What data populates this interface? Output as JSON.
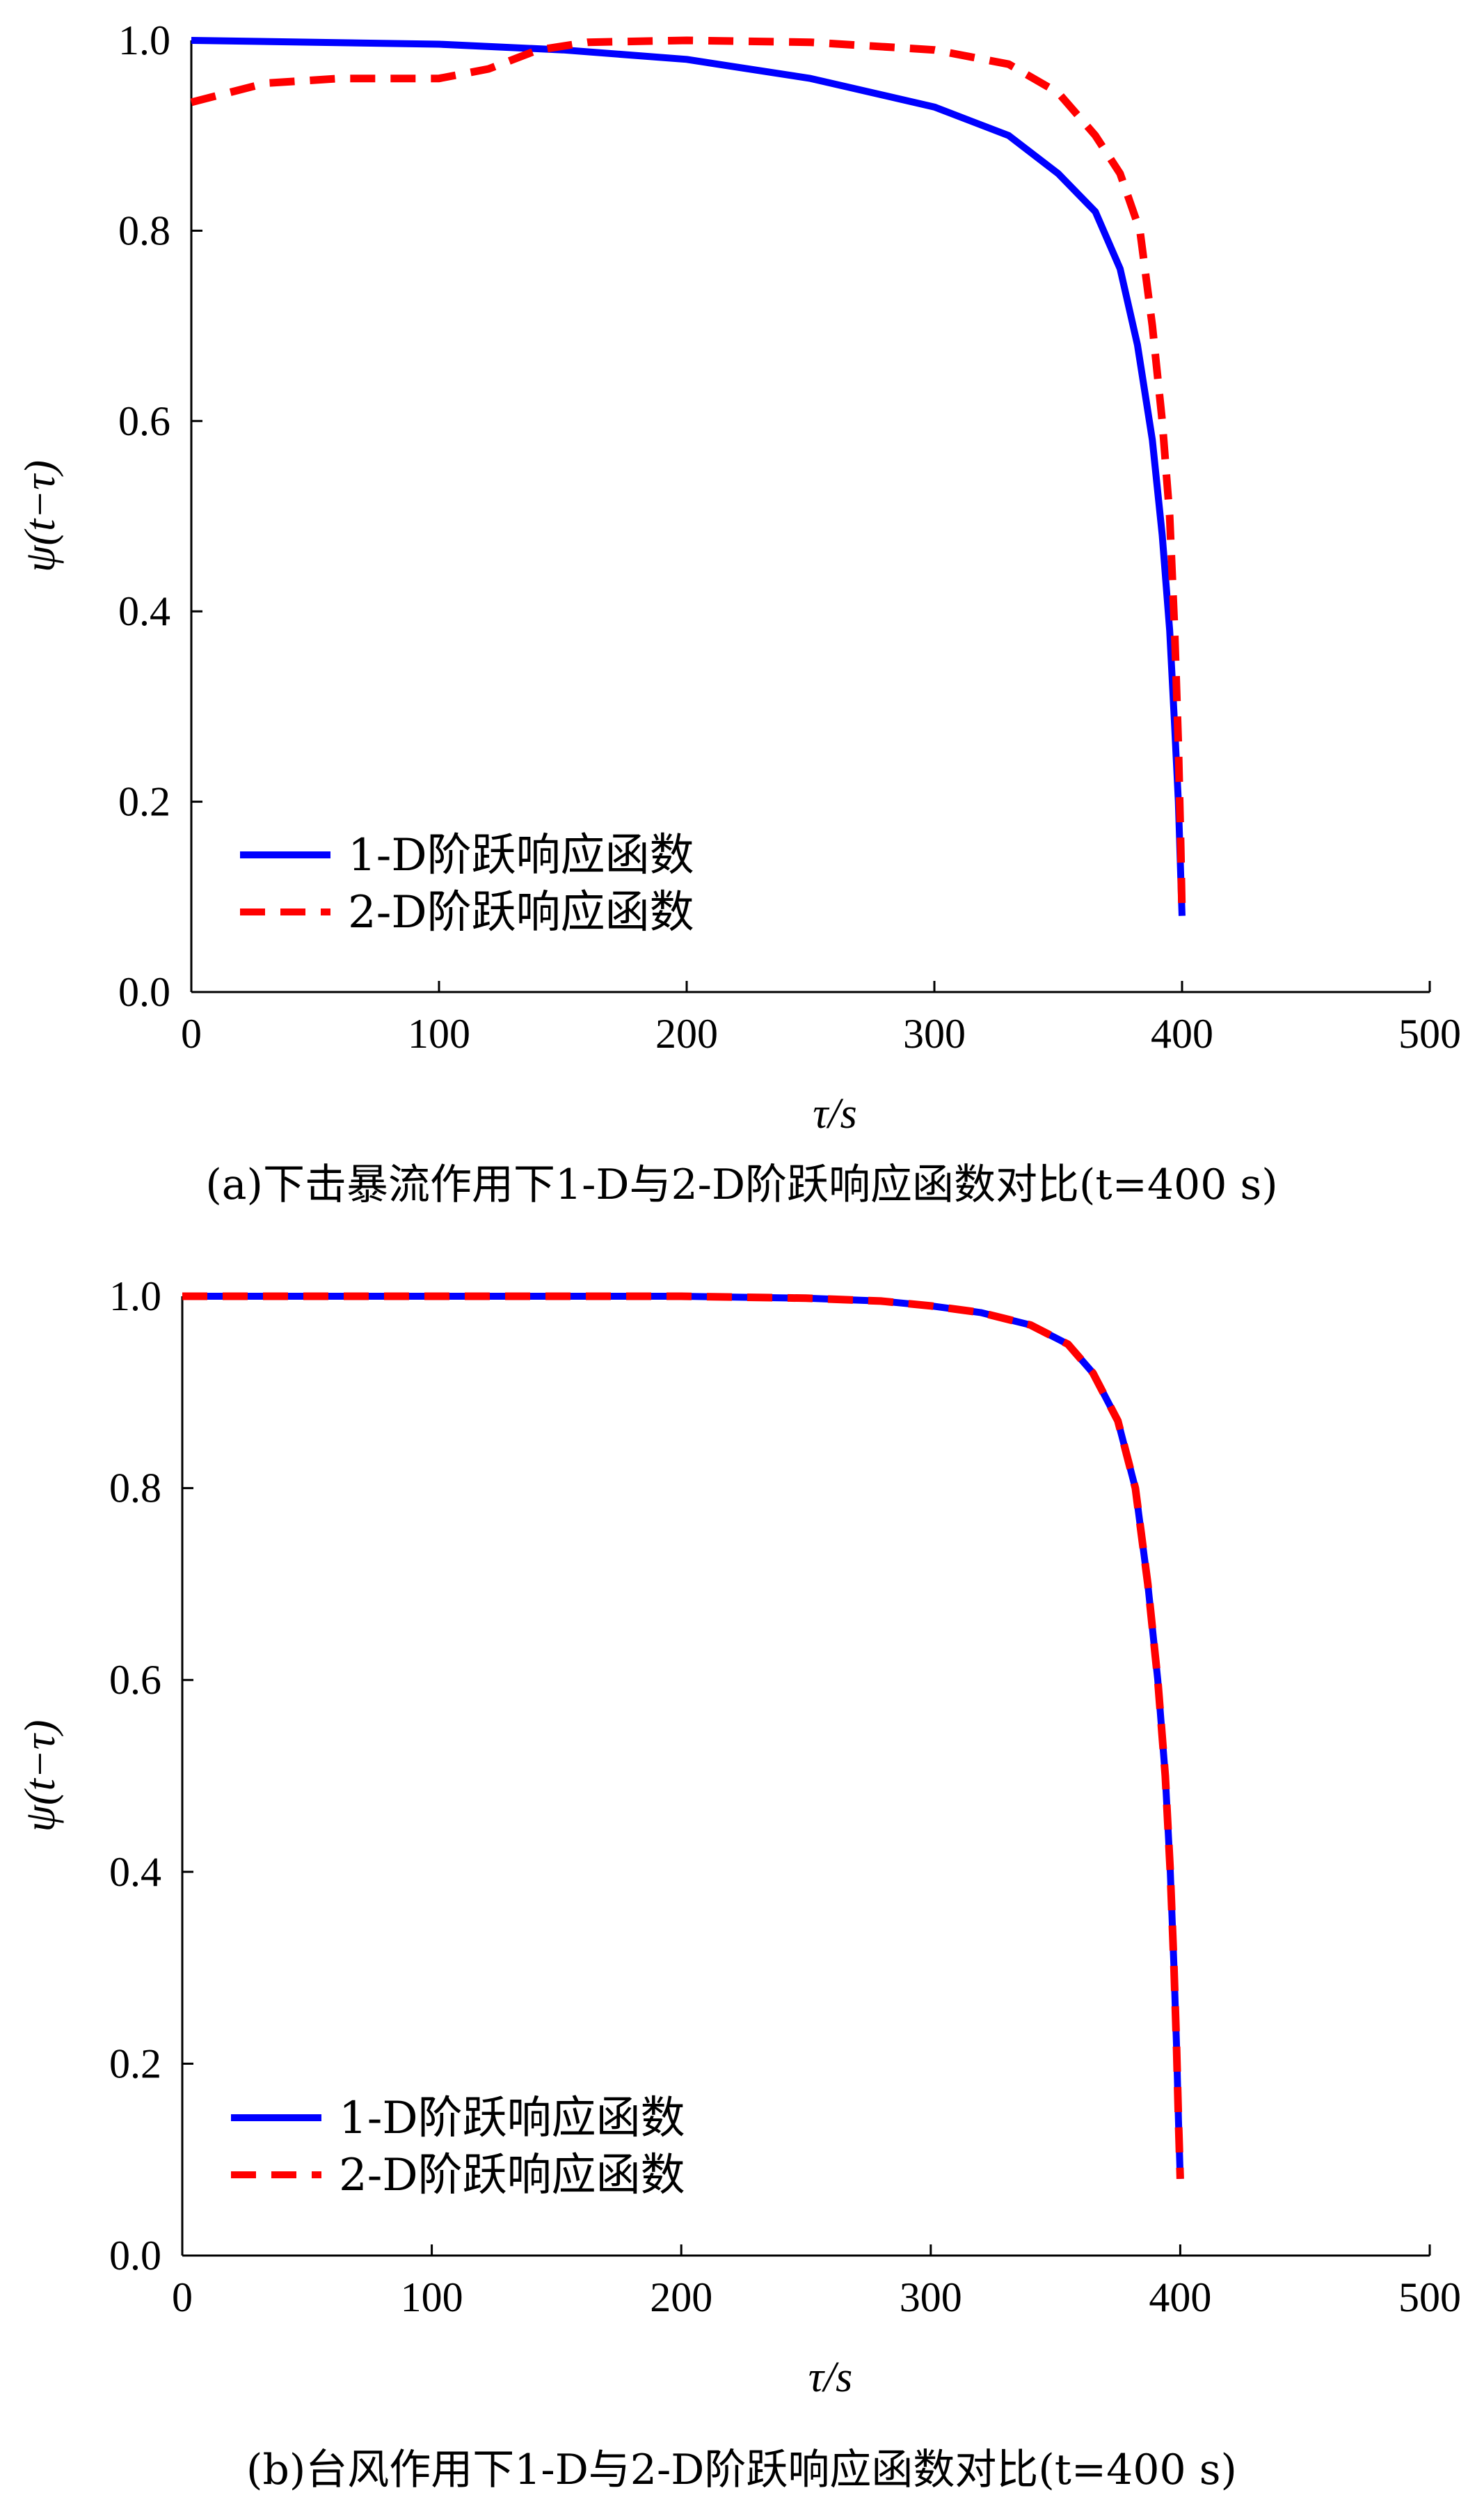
{
  "chart_data": [
    {
      "type": "line",
      "caption": "(a)下击暴流作用下1-D与2-D阶跃响应函数对比(t=400 s)",
      "xlabel": "τ/s",
      "ylabel": "ψ(t−τ)",
      "xlim": [
        0,
        500
      ],
      "ylim": [
        0,
        1.0
      ],
      "xticks": [
        0,
        100,
        200,
        300,
        400,
        500
      ],
      "yticks": [
        0.0,
        0.2,
        0.4,
        0.6,
        0.8,
        1.0
      ],
      "xtick_labels": [
        "0",
        "100",
        "200",
        "300",
        "400",
        "500"
      ],
      "ytick_labels": [
        "0.0",
        "0.2",
        "0.4",
        "0.6",
        "0.8",
        "1.0"
      ],
      "grid": false,
      "legend_position": "bottom-left",
      "series": [
        {
          "name": "1-D阶跃响应函数",
          "color": "#0000ff",
          "style": "solid",
          "x": [
            0,
            50,
            100,
            150,
            200,
            250,
            300,
            330,
            350,
            365,
            375,
            382,
            388,
            392,
            395,
            397,
            398.5,
            399.5,
            400
          ],
          "y": [
            1.0,
            0.998,
            0.996,
            0.99,
            0.98,
            0.96,
            0.93,
            0.9,
            0.86,
            0.82,
            0.76,
            0.68,
            0.58,
            0.48,
            0.38,
            0.28,
            0.2,
            0.12,
            0.08
          ]
        },
        {
          "name": "2-D阶跃响应函数",
          "color": "#ff0000",
          "style": "dashed",
          "x": [
            0,
            30,
            60,
            100,
            120,
            140,
            160,
            200,
            250,
            300,
            330,
            350,
            365,
            375,
            383,
            388,
            392,
            395,
            397,
            398.5,
            399.5,
            400
          ],
          "y": [
            0.935,
            0.955,
            0.96,
            0.96,
            0.97,
            0.99,
            0.998,
            1.0,
            0.998,
            0.99,
            0.975,
            0.945,
            0.9,
            0.86,
            0.8,
            0.7,
            0.6,
            0.5,
            0.38,
            0.26,
            0.15,
            0.08
          ]
        }
      ]
    },
    {
      "type": "line",
      "caption": "(b)台风作用下1-D与2-D阶跃响应函数对比(t=400 s)",
      "xlabel": "τ/s",
      "ylabel": "ψ(t−τ)",
      "xlim": [
        0,
        500
      ],
      "ylim": [
        0,
        1.0
      ],
      "xticks": [
        0,
        100,
        200,
        300,
        400,
        500
      ],
      "yticks": [
        0.0,
        0.2,
        0.4,
        0.6,
        0.8,
        1.0
      ],
      "xtick_labels": [
        "0",
        "100",
        "200",
        "300",
        "400",
        "500"
      ],
      "ytick_labels": [
        "0.0",
        "0.2",
        "0.4",
        "0.6",
        "0.8",
        "1.0"
      ],
      "grid": false,
      "legend_position": "bottom-left",
      "series": [
        {
          "name": "1-D阶跃响应函数",
          "color": "#0000ff",
          "style": "solid",
          "x": [
            0,
            100,
            200,
            250,
            280,
            300,
            320,
            340,
            355,
            365,
            375,
            382,
            387,
            391,
            394,
            396,
            397.5,
            398.5,
            399.3,
            400
          ],
          "y": [
            1.0,
            1.0,
            1.0,
            0.998,
            0.995,
            0.99,
            0.983,
            0.97,
            0.95,
            0.92,
            0.87,
            0.8,
            0.7,
            0.6,
            0.5,
            0.4,
            0.3,
            0.22,
            0.14,
            0.08
          ]
        },
        {
          "name": "2-D阶跃响应函数",
          "color": "#ff0000",
          "style": "dashed",
          "x": [
            0,
            100,
            200,
            250,
            280,
            300,
            320,
            340,
            355,
            365,
            375,
            382,
            387,
            391,
            394,
            396,
            397.5,
            398.5,
            399.3,
            400
          ],
          "y": [
            1.0,
            1.0,
            1.0,
            0.998,
            0.995,
            0.99,
            0.983,
            0.97,
            0.95,
            0.92,
            0.87,
            0.8,
            0.7,
            0.6,
            0.5,
            0.4,
            0.3,
            0.22,
            0.14,
            0.08
          ]
        }
      ]
    }
  ]
}
